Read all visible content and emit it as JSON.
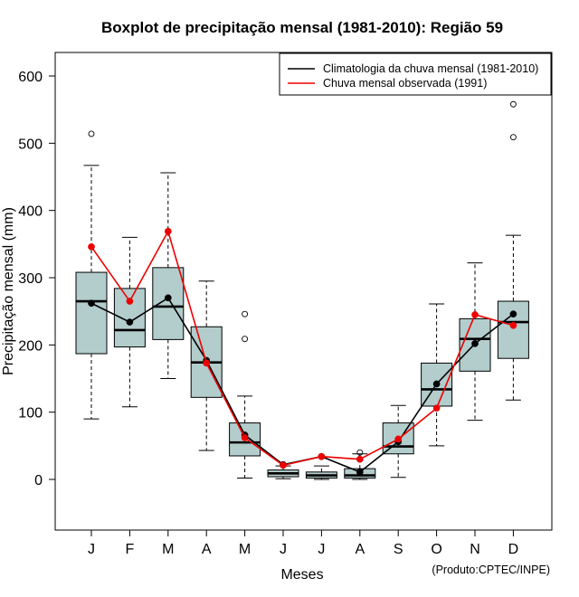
{
  "chart_data": {
    "type": "boxplot",
    "title": "Boxplot de precipitação mensal (1981-2010): Região 59",
    "xlabel": "Meses",
    "ylabel": "Precipitação mensal (mm)",
    "ylim": [
      -75,
      640
    ],
    "yticks": [
      0,
      100,
      200,
      300,
      400,
      500,
      600
    ],
    "categories": [
      "J",
      "F",
      "M",
      "A",
      "M",
      "J",
      "J",
      "A",
      "S",
      "O",
      "N",
      "D"
    ],
    "boxes": [
      {
        "whisker_low": 90,
        "q1": 187,
        "median": 265,
        "q3": 308,
        "whisker_high": 467,
        "outliers": [
          514
        ]
      },
      {
        "whisker_low": 108,
        "q1": 197,
        "median": 222,
        "q3": 284,
        "whisker_high": 360,
        "outliers": []
      },
      {
        "whisker_low": 150,
        "q1": 208,
        "median": 257,
        "q3": 315,
        "whisker_high": 456,
        "outliers": []
      },
      {
        "whisker_low": 43,
        "q1": 122,
        "median": 174,
        "q3": 227,
        "whisker_high": 295,
        "outliers": []
      },
      {
        "whisker_low": 2,
        "q1": 35,
        "median": 55,
        "q3": 84,
        "whisker_high": 124,
        "outliers": [
          209,
          246
        ]
      },
      {
        "whisker_low": 1,
        "q1": 4,
        "median": 9,
        "q3": 14,
        "whisker_high": 20,
        "outliers": []
      },
      {
        "whisker_low": 0,
        "q1": 2,
        "median": 6,
        "q3": 11,
        "whisker_high": 20,
        "outliers": []
      },
      {
        "whisker_low": 0,
        "q1": 2,
        "median": 6,
        "q3": 16,
        "whisker_high": 38,
        "outliers": [
          40
        ]
      },
      {
        "whisker_low": 3,
        "q1": 38,
        "median": 49,
        "q3": 84,
        "whisker_high": 110,
        "outliers": []
      },
      {
        "whisker_low": 50,
        "q1": 109,
        "median": 134,
        "q3": 173,
        "whisker_high": 261,
        "outliers": []
      },
      {
        "whisker_low": 88,
        "q1": 161,
        "median": 209,
        "q3": 239,
        "whisker_high": 322,
        "outliers": []
      },
      {
        "whisker_low": 118,
        "q1": 180,
        "median": 234,
        "q3": 265,
        "whisker_high": 363,
        "outliers": [
          509,
          558
        ]
      }
    ],
    "series": [
      {
        "name": "Climatologia da chuva mensal (1981-2010)",
        "color": "#000000",
        "values": [
          262,
          234,
          270,
          177,
          66,
          22,
          34,
          11,
          56,
          142,
          202,
          246
        ]
      },
      {
        "name": "Chuva mensal observada (1991)",
        "color": "#ee0000",
        "values": [
          346,
          265,
          369,
          173,
          62,
          21,
          34,
          30,
          60,
          106,
          245,
          229
        ]
      }
    ],
    "legend_position": "top-right",
    "box_fill": "#b3cccc",
    "credit": "(Produto:CPTEC/INPE)"
  }
}
